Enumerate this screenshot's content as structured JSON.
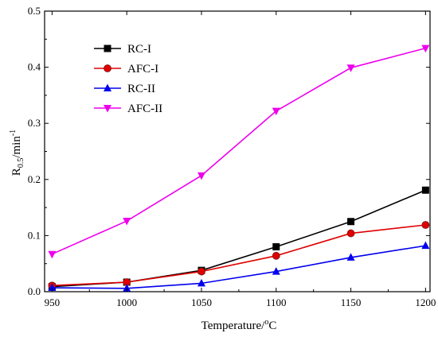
{
  "chart_data": {
    "type": "line",
    "xlabel": "Temperature/",
    "xlabel_sup": "o",
    "xlabel_unit": "C",
    "ylabel_main": "R",
    "ylabel_sub": "0.5",
    "ylabel_unit": "/min",
    "ylabel_sup": "-1",
    "xlim": [
      945,
      1203
    ],
    "ylim": [
      0,
      0.5
    ],
    "x_ticks": [
      950,
      1000,
      1050,
      1100,
      1150,
      1200
    ],
    "y_ticks": [
      0.0,
      0.1,
      0.2,
      0.3,
      0.4,
      0.5
    ],
    "legend_position": "top-left",
    "grid": false,
    "series": [
      {
        "name": "RC-I",
        "color": "#000000",
        "marker": "square",
        "x": [
          950,
          1000,
          1050,
          1100,
          1150,
          1200
        ],
        "y": [
          0.009,
          0.017,
          0.038,
          0.08,
          0.125,
          0.181
        ]
      },
      {
        "name": "AFC-I",
        "color": "#e00000",
        "marker": "circle",
        "x": [
          950,
          1000,
          1050,
          1100,
          1150,
          1200
        ],
        "y": [
          0.011,
          0.017,
          0.036,
          0.064,
          0.104,
          0.119
        ]
      },
      {
        "name": "RC-II",
        "color": "#0000ee",
        "marker": "triangle-up",
        "x": [
          950,
          1000,
          1050,
          1100,
          1150,
          1200
        ],
        "y": [
          0.007,
          0.006,
          0.015,
          0.036,
          0.061,
          0.082
        ]
      },
      {
        "name": "AFC-II",
        "color": "#ee00ee",
        "marker": "triangle-down",
        "x": [
          950,
          1000,
          1050,
          1100,
          1150,
          1200
        ],
        "y": [
          0.067,
          0.126,
          0.207,
          0.322,
          0.399,
          0.434
        ]
      }
    ]
  }
}
